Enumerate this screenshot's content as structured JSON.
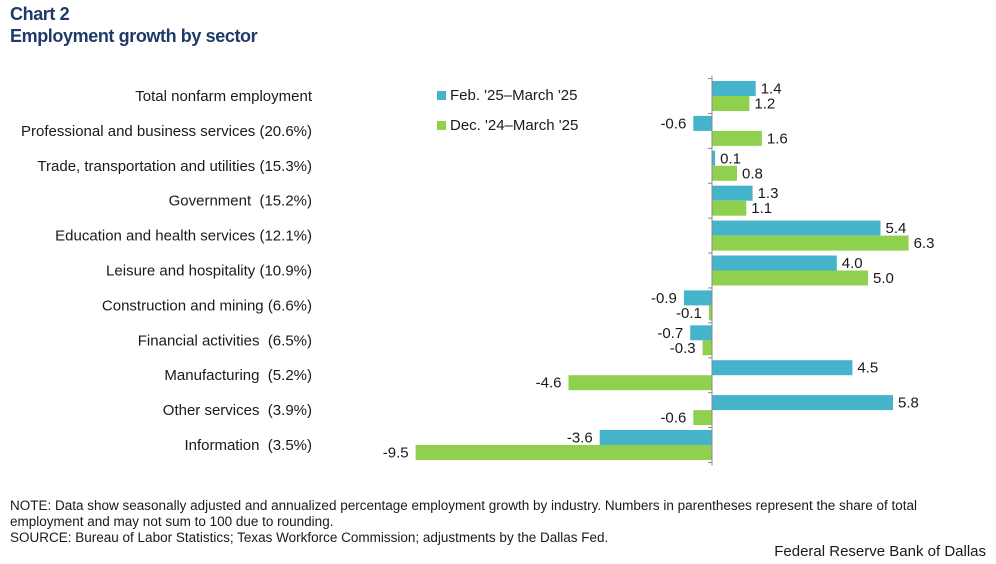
{
  "header": {
    "chart_number": "Chart 2",
    "title": "Employment growth by sector"
  },
  "colors": {
    "series1": "#45b4cb",
    "series2": "#8fd14f",
    "title": "#1f3a68",
    "axis": "#888888"
  },
  "chart_data": {
    "type": "bar",
    "orientation": "horizontal",
    "title": "Employment growth by sector",
    "categories": [
      "Total nonfarm employment",
      "Professional and business services (20.6%)",
      "Trade, transportation and utilities (15.3%)",
      "Government  (15.2%)",
      "Education and health services (12.1%)",
      "Leisure and hospitality (10.9%)",
      "Construction and mining (6.6%)",
      "Financial activities  (6.5%)",
      "Manufacturing  (5.2%)",
      "Other services  (3.9%)",
      "Information  (3.5%)"
    ],
    "series": [
      {
        "name": "Feb. '25–March '25",
        "values": [
          1.4,
          -0.6,
          0.1,
          1.3,
          5.4,
          4.0,
          -0.9,
          -0.7,
          4.5,
          5.8,
          -3.6
        ],
        "labels": [
          "1.4",
          "-0.6",
          "0.1",
          "1.3",
          "5.4",
          "4.0",
          "-0.9",
          "-0.7",
          "4.5",
          "5.8",
          "-3.6"
        ]
      },
      {
        "name": "Dec. '24–March '25",
        "values": [
          1.2,
          1.6,
          0.8,
          1.1,
          6.3,
          5.0,
          -0.1,
          -0.3,
          -4.6,
          -0.6,
          -9.5
        ],
        "labels": [
          "1.2",
          "1.6",
          "0.8",
          "1.1",
          "6.3",
          "5.0",
          "-0.1",
          "-0.3",
          "-4.6",
          "-0.6",
          "-9.5"
        ]
      }
    ],
    "xlim": [
      -9.5,
      6.3
    ],
    "legend_position": "top-center",
    "grid": false
  },
  "footer": {
    "note": "NOTE: Data show seasonally adjusted and annualized percentage employment growth by industry. Numbers in parentheses represent the share of total employment and may not sum to 100 due to rounding.",
    "source": "SOURCE: Bureau of Labor Statistics; Texas Workforce Commission; adjustments by the Dallas Fed.",
    "credit": "Federal Reserve Bank of Dallas"
  }
}
